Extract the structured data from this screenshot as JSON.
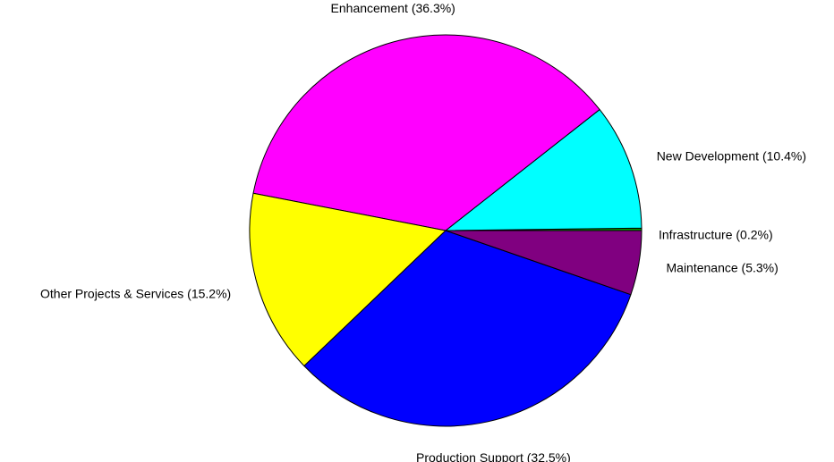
{
  "chart_data": {
    "type": "pie",
    "slices": [
      {
        "label": "Infrastructure (0.2%)",
        "value": 0.2,
        "color": "#00a000"
      },
      {
        "label": "New Development (10.4%)",
        "value": 10.4,
        "color": "#00ffff"
      },
      {
        "label": "Enhancement (36.3%)",
        "value": 36.3,
        "color": "#ff00ff"
      },
      {
        "label": "Other Projects & Services (15.2%)",
        "value": 15.2,
        "color": "#ffff00"
      },
      {
        "label": "Production Support (32.5%)",
        "value": 32.5,
        "color": "#0000ff"
      },
      {
        "label": "Maintenance (5.3%)",
        "value": 5.3,
        "color": "#800080"
      }
    ],
    "start_angle_deg": 0,
    "direction": "counterclockwise",
    "legend": "none"
  }
}
